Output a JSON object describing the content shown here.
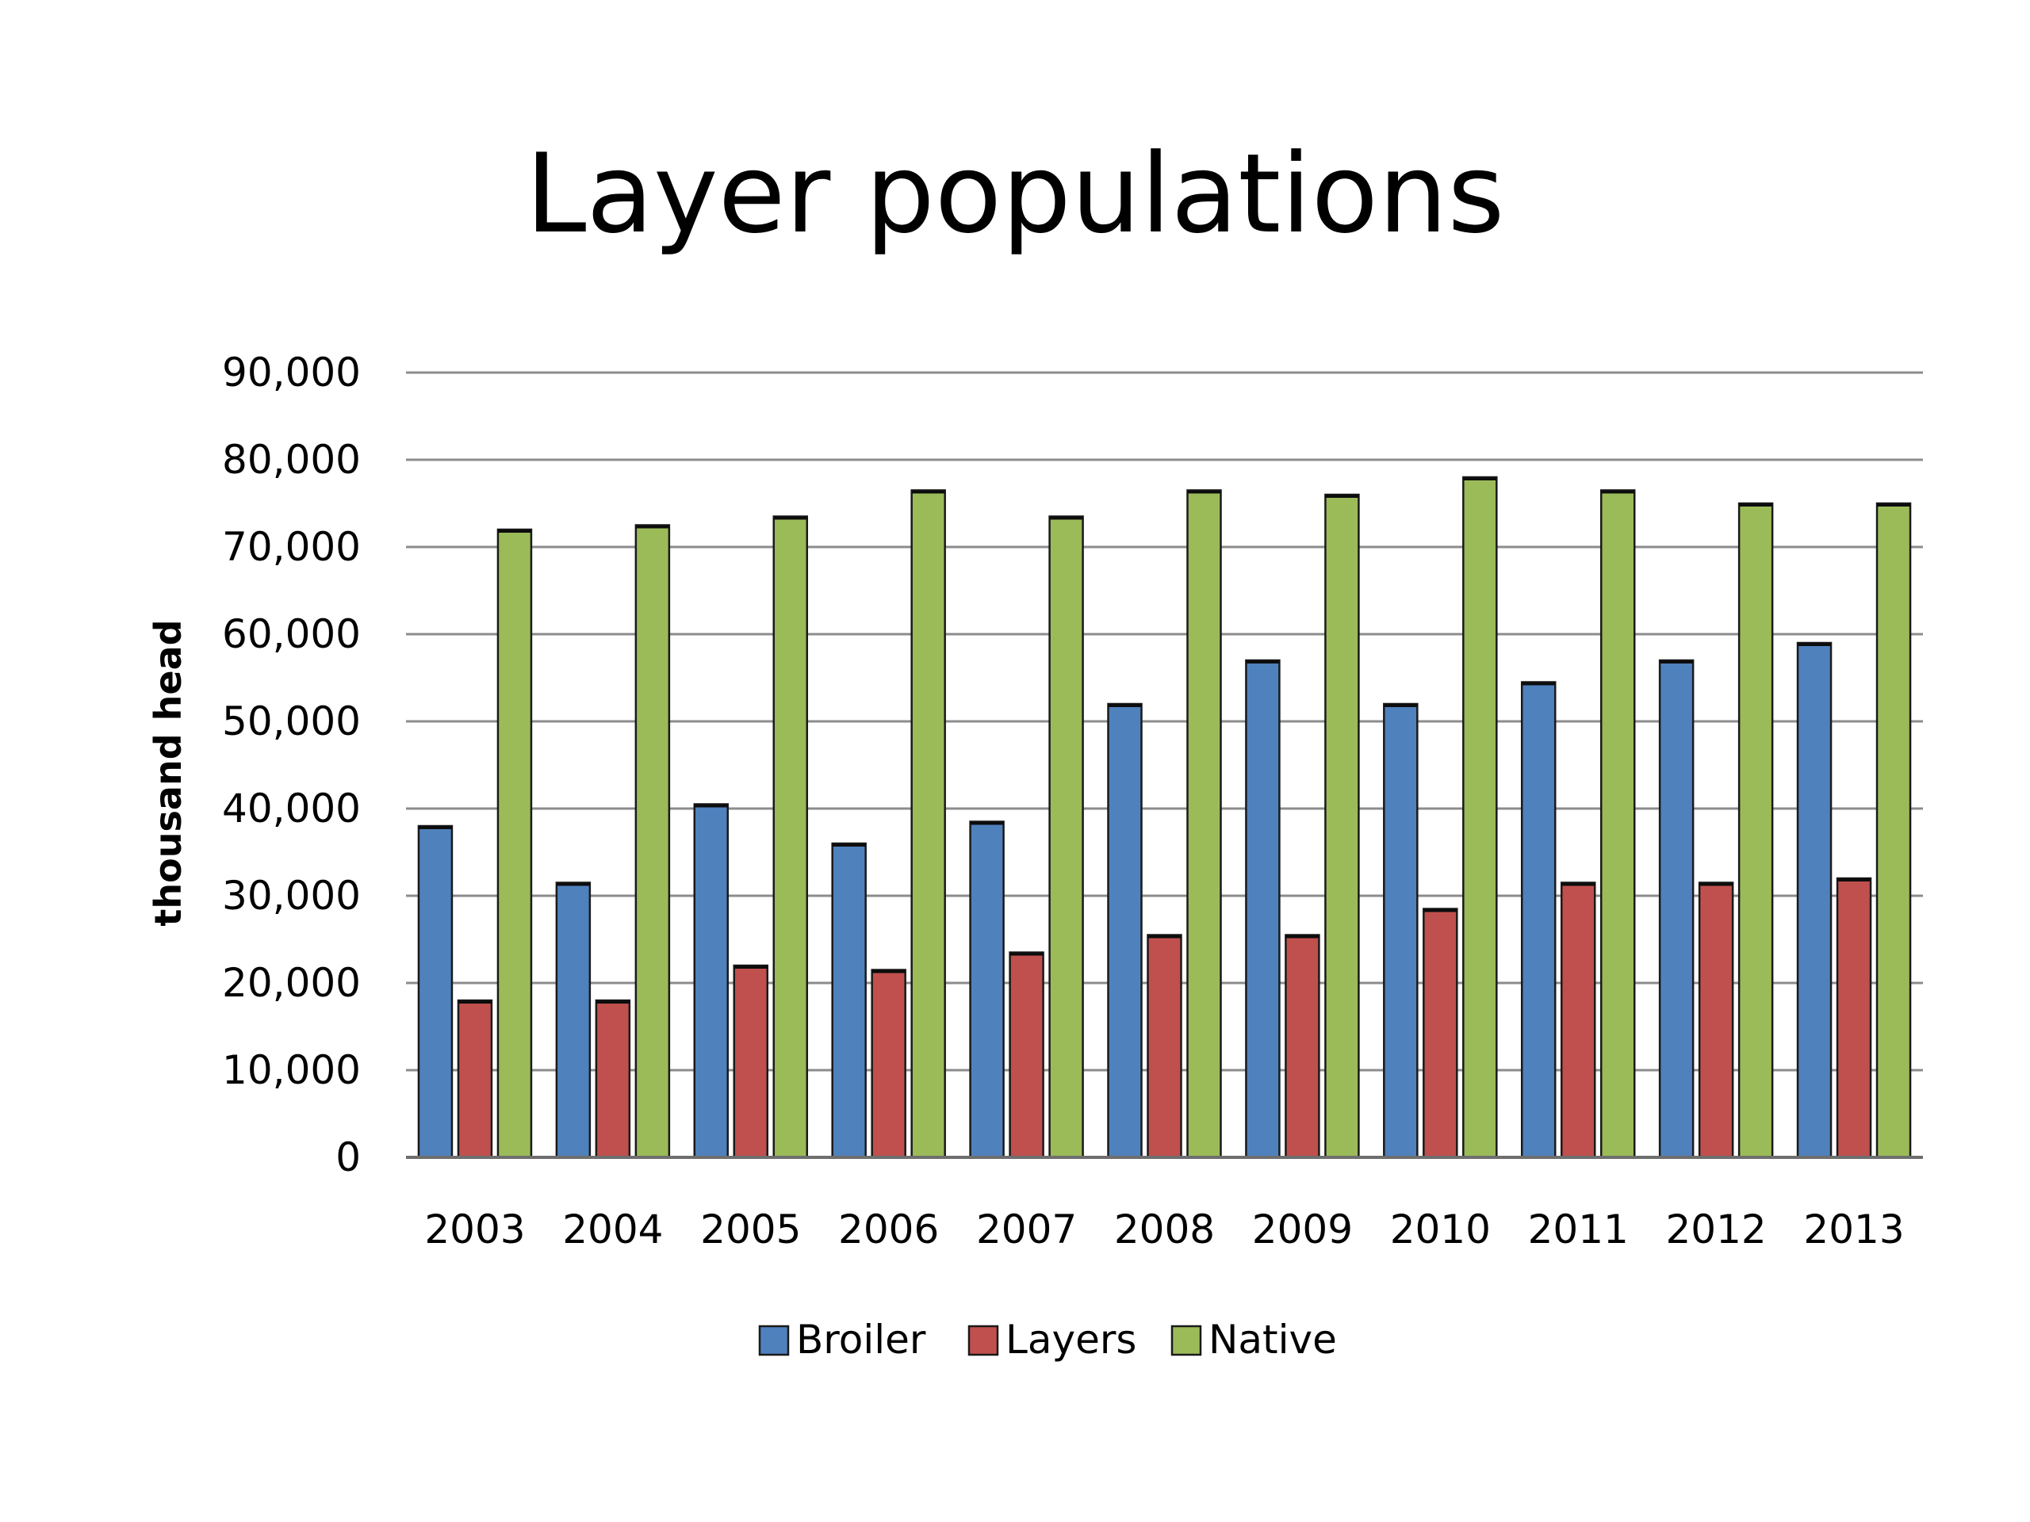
{
  "title": "Layer populations",
  "chart_data": {
    "type": "bar",
    "title": "",
    "xlabel": "",
    "ylabel": "thousand head",
    "ylim": [
      0,
      90000
    ],
    "yticks": [
      "0",
      "10,000",
      "20,000",
      "30,000",
      "40,000",
      "50,000",
      "60,000",
      "70,000",
      "80,000",
      "90,000"
    ],
    "categories": [
      "2003",
      "2004",
      "2005",
      "2006",
      "2007",
      "2008",
      "2009",
      "2010",
      "2011",
      "2012",
      "2013"
    ],
    "series": [
      {
        "name": "Broiler",
        "color": "#4f81bd",
        "values": [
          38000,
          31500,
          40500,
          36000,
          38500,
          52000,
          57000,
          52000,
          54500,
          57000,
          59000
        ]
      },
      {
        "name": "Layers",
        "color": "#c0504d",
        "values": [
          18000,
          18000,
          22000,
          21500,
          23500,
          25500,
          25500,
          28500,
          31500,
          31500,
          32000
        ]
      },
      {
        "name": "Native",
        "color": "#9bbb59",
        "values": [
          72000,
          72500,
          73500,
          76500,
          73500,
          76500,
          76000,
          78000,
          76500,
          75000,
          75000
        ]
      }
    ],
    "grid": true,
    "legend": "bottom"
  }
}
